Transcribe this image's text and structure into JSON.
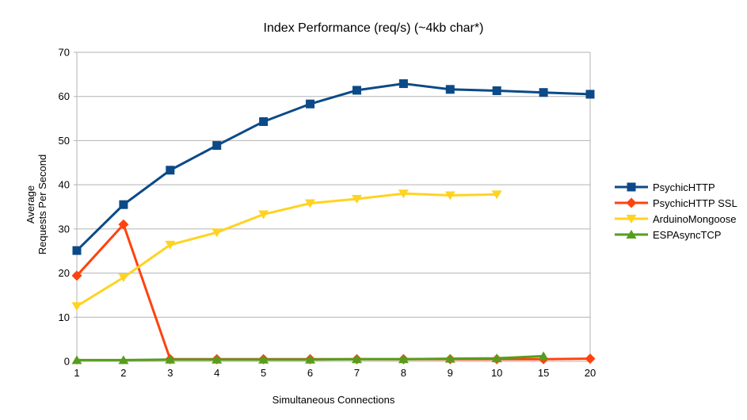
{
  "chart_data": {
    "type": "line",
    "title": "Index Performance (req/s) (~4kb char*)",
    "xlabel": "Simultaneous Connections",
    "ylabel_lines": [
      "Average",
      "Requests Per Second"
    ],
    "categories": [
      "1",
      "2",
      "3",
      "4",
      "5",
      "6",
      "7",
      "8",
      "9",
      "10",
      "15",
      "20"
    ],
    "ylim": [
      0,
      70
    ],
    "yticks": [
      0,
      10,
      20,
      30,
      40,
      50,
      60,
      70
    ],
    "grid": "horizontal",
    "grid_color": "#b3b3b3",
    "axis_color": "#b3b3b3",
    "legend_position": "right",
    "series": [
      {
        "name": "PsychicHTTP",
        "color": "#0b4a87",
        "marker": "square",
        "values": [
          25.1,
          35.5,
          43.3,
          48.9,
          54.3,
          58.3,
          61.4,
          62.9,
          61.6,
          61.3,
          60.9,
          60.5
        ]
      },
      {
        "name": "PsychicHTTP SSL",
        "color": "#ff420e",
        "marker": "diamond",
        "values": [
          19.4,
          31.0,
          0.5,
          0.5,
          0.5,
          0.5,
          0.5,
          0.5,
          0.5,
          0.5,
          0.5,
          0.6
        ]
      },
      {
        "name": "ArduinoMongoose",
        "color": "#ffd320",
        "marker": "triangle-down",
        "values": [
          12.5,
          19.0,
          26.4,
          29.2,
          33.3,
          35.8,
          36.8,
          38.0,
          37.6,
          37.8,
          null,
          null
        ]
      },
      {
        "name": "ESPAsyncTCP",
        "color": "#579d1c",
        "marker": "triangle-up",
        "values": [
          0.3,
          0.3,
          0.4,
          0.4,
          0.4,
          0.4,
          0.5,
          0.5,
          0.6,
          0.7,
          1.2,
          null
        ]
      }
    ]
  }
}
